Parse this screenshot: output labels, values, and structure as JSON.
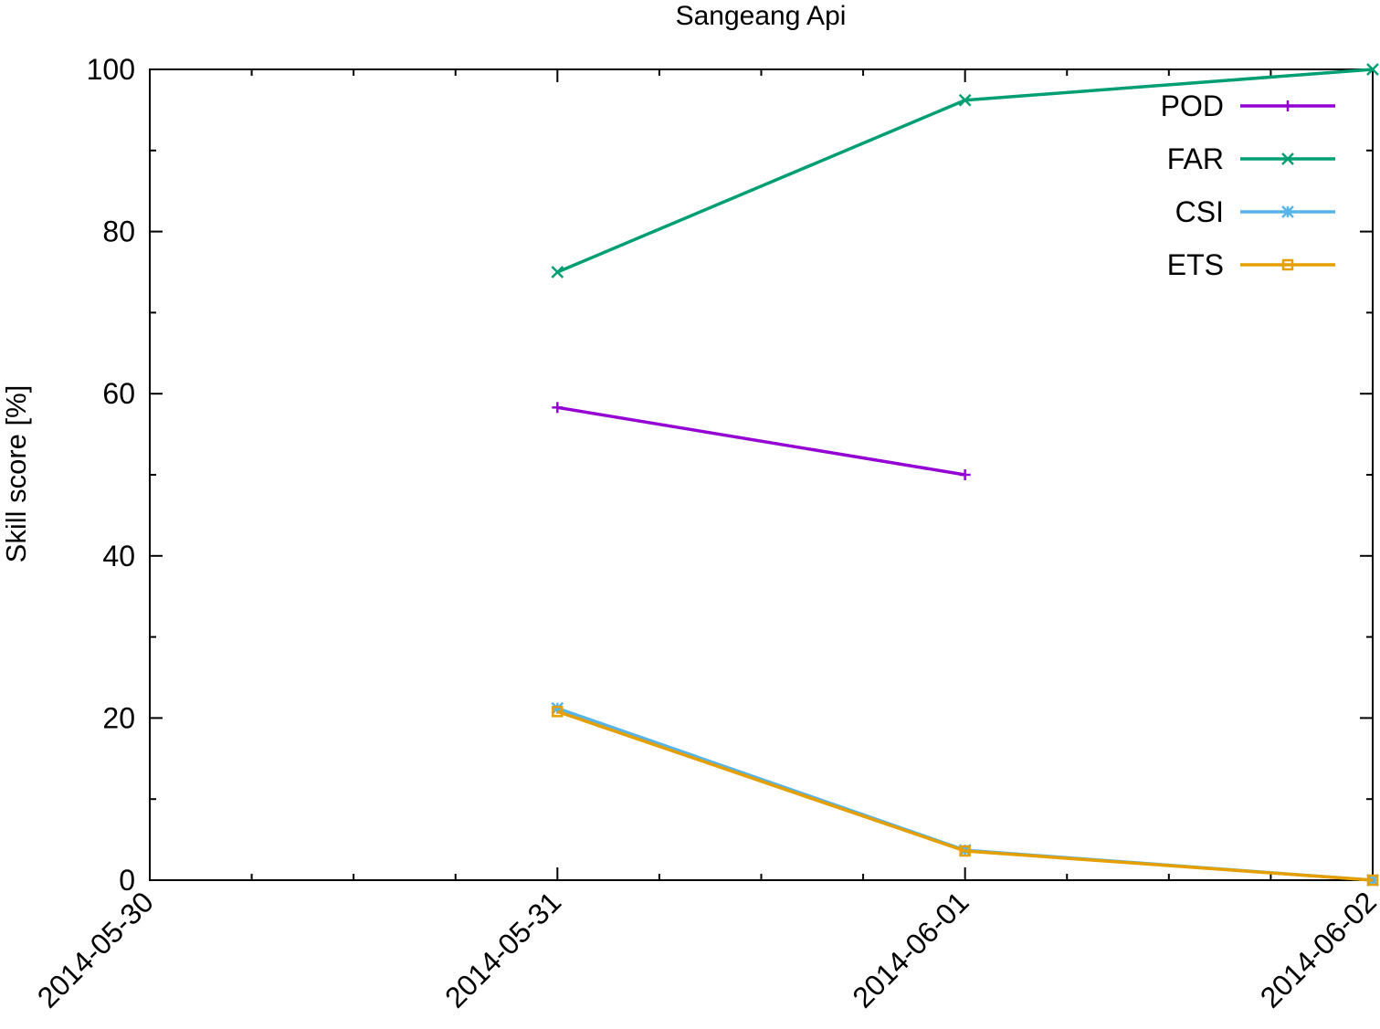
{
  "chart_data": {
    "type": "line",
    "title": "Sangeang Api",
    "xlabel": "",
    "ylabel": "Skill score [%]",
    "x_ticks": [
      "2014-05-30",
      "2014-05-31",
      "2014-06-01",
      "2014-06-02"
    ],
    "y_ticks": [
      "0",
      "20",
      "40",
      "60",
      "80",
      "100"
    ],
    "ylim": [
      0,
      100
    ],
    "xlim": [
      "2014-05-30",
      "2014-06-02"
    ],
    "grid": false,
    "legend_position": "top-right",
    "series": [
      {
        "name": "POD",
        "color": "#9400d3",
        "marker": "plus",
        "points": [
          {
            "x": "2014-05-31",
            "y": 58.3
          },
          {
            "x": "2014-06-01",
            "y": 50.0
          }
        ]
      },
      {
        "name": "FAR",
        "color": "#009e73",
        "marker": "cross",
        "points": [
          {
            "x": "2014-05-31",
            "y": 75.0
          },
          {
            "x": "2014-06-01",
            "y": 96.2
          },
          {
            "x": "2014-06-02",
            "y": 100.0
          }
        ]
      },
      {
        "name": "CSI",
        "color": "#56b4e9",
        "marker": "star",
        "points": [
          {
            "x": "2014-05-31",
            "y": 21.2
          },
          {
            "x": "2014-06-01",
            "y": 3.7
          },
          {
            "x": "2014-06-02",
            "y": 0.0
          }
        ]
      },
      {
        "name": "ETS",
        "color": "#e69f00",
        "marker": "square",
        "points": [
          {
            "x": "2014-05-31",
            "y": 20.8
          },
          {
            "x": "2014-06-01",
            "y": 3.6
          },
          {
            "x": "2014-06-02",
            "y": 0.0
          }
        ]
      }
    ]
  }
}
